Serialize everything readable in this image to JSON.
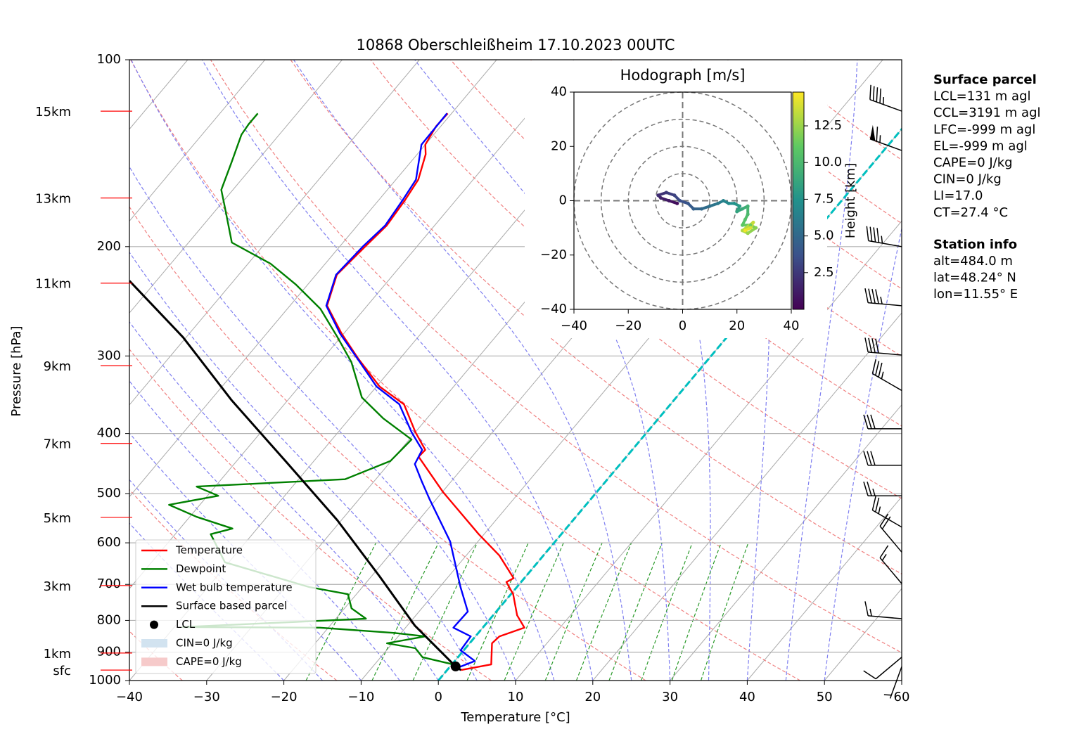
{
  "chart_data": [
    {
      "type": "skewt",
      "title": "10868 Oberschleißheim 17.10.2023 00UTC",
      "x_label": "Temperature [°C]",
      "y_label": "Pressure [hPa]",
      "y_log": true,
      "grid": true,
      "xlim": [
        -40,
        60
      ],
      "xticks": [
        {
          "value": -40,
          "label": "−40"
        },
        {
          "value": -30,
          "label": "−30"
        },
        {
          "value": -20,
          "label": "−20"
        },
        {
          "value": -10,
          "label": "−10"
        },
        0,
        10,
        20,
        30,
        40,
        50,
        60
      ],
      "ylim": [
        1000,
        100
      ],
      "yticks": [
        1000,
        900,
        800,
        700,
        600,
        500,
        400,
        300,
        200,
        100
      ],
      "series": [
        {
          "name": "Temperature",
          "color": "#ff0000",
          "pressure": [
            962,
            942,
            871,
            849,
            822,
            785,
            726,
            694,
            684,
            629,
            581,
            497,
            436,
            425,
            398,
            359,
            336,
            303,
            276,
            249,
            222,
            200,
            185,
            168,
            156,
            142,
            137,
            128,
            122
          ],
          "temperature": [
            1.8,
            5.1,
            2.9,
            3.1,
            5.4,
            3.1,
            0.3,
            -1.9,
            -1.4,
            -5.7,
            -10.7,
            -19.9,
            -26.9,
            -26.8,
            -30.0,
            -34.5,
            -39.6,
            -45.4,
            -50.3,
            -55.2,
            -57.3,
            -56.7,
            -56.2,
            -56.6,
            -57.1,
            -58.9,
            -60.0,
            -60.6,
            -60.5
          ]
        },
        {
          "name": "Dewpoint",
          "color": "#008000",
          "pressure": [
            942,
            917,
            887,
            871,
            849,
            838,
            822,
            820,
            795,
            765,
            726,
            707,
            645,
            581,
            569,
            545,
            521,
            504,
            487,
            474,
            443,
            409,
            378,
            350,
            307,
            280,
            252,
            230,
            213,
            197,
            173,
            162,
            146,
            132,
            127,
            122
          ],
          "temperature": [
            0.2,
            -4.6,
            -6.5,
            -10.7,
            -6.5,
            -11.0,
            -21.1,
            -38.9,
            -16.1,
            -19.1,
            -21.1,
            -26.9,
            -40.5,
            -45.4,
            -43.2,
            -49.1,
            -54.0,
            -48.6,
            -52.4,
            -34.0,
            -30.1,
            -29.7,
            -35.7,
            -40.7,
            -45.9,
            -50.4,
            -55.7,
            -61.6,
            -67.1,
            -74.4,
            -79.1,
            -81.5,
            -83.2,
            -84.9,
            -85.1,
            -85.1
          ]
        },
        {
          "name": "Wet bulb temperature",
          "color": "#0000ff",
          "pressure": [
            954,
            930,
            894,
            849,
            822,
            774,
            707,
            597,
            510,
            478,
            448,
            425,
            398,
            359,
            336,
            303,
            276,
            249,
            222,
            200,
            185,
            168,
            156,
            137,
            122
          ],
          "temperature": [
            1.1,
            2.6,
            -0.4,
            -0.6,
            -3.8,
            -3.7,
            -7.3,
            -13.6,
            -20.9,
            -23.8,
            -26.6,
            -27.2,
            -30.5,
            -35.1,
            -40.0,
            -45.5,
            -50.5,
            -55.3,
            -57.4,
            -57.0,
            -56.4,
            -56.9,
            -57.4,
            -60.5,
            -60.6
          ]
        },
        {
          "name": "Surface based parcel",
          "color": "#000000",
          "pressure": [
            962,
            949,
            882,
            816,
            680,
            552,
            448,
            354,
            280,
            227
          ],
          "temperature": [
            1.8,
            0.7,
            -4.0,
            -9.0,
            -18.9,
            -30.5,
            -43.0,
            -57.2,
            -70.4,
            -83.5
          ]
        }
      ],
      "lcl": {
        "name": "LCL",
        "pressure": 949,
        "temperature": 0.7,
        "color": "#000000"
      },
      "shading": [
        {
          "name": "CIN=0 J/kg",
          "color": "#d2e3f0"
        },
        {
          "name": "CAPE=0 J/kg",
          "color": "#f6caca"
        }
      ],
      "zero_isotherm": {
        "temperature": 0,
        "color": "#00bfbf"
      },
      "height_labels": {
        "color": "#ff0000",
        "labels": [
          "15km",
          "13km",
          "11km",
          "9km",
          "7km",
          "5km",
          "3km",
          "1km",
          "sfc"
        ],
        "pressure": [
          121,
          167,
          229,
          311,
          415,
          546,
          703,
          903,
          962
        ]
      },
      "wind_barbs": {
        "pressure": [
          121,
          140,
          200,
          249,
          299,
          341,
          393,
          450,
          504,
          566,
          621,
          698,
          795,
          917,
          950
        ],
        "speed": [
          45,
          65,
          45,
          45,
          40,
          35,
          30,
          30,
          25,
          25,
          20,
          15,
          15,
          10,
          5
        ],
        "direction": [
          290,
          290,
          280,
          275,
          275,
          300,
          270,
          270,
          270,
          300,
          320,
          320,
          275,
          230,
          200
        ]
      }
    },
    {
      "type": "hodograph",
      "title": "Hodograph [m/s]",
      "xlim": [
        -40,
        40
      ],
      "ylim": [
        -40,
        40
      ],
      "xticks": [
        {
          "value": -40,
          "label": "−40"
        },
        {
          "value": -20,
          "label": "−20"
        },
        0,
        20,
        40
      ],
      "yticks": [
        {
          "value": -40,
          "label": "−40"
        },
        {
          "value": -20,
          "label": "−20"
        },
        0,
        20,
        40
      ],
      "rings": [
        10,
        20,
        30,
        40
      ],
      "u": [
        -2,
        -5,
        -8,
        -9,
        -6,
        -3,
        -1,
        2,
        4,
        7,
        10,
        13,
        15,
        17,
        19,
        21,
        20,
        22,
        24,
        24,
        23,
        22,
        25,
        27,
        24,
        22,
        26,
        25,
        23
      ],
      "v": [
        -1,
        0,
        1,
        2,
        3,
        2,
        0,
        -1,
        -3,
        -3,
        -2,
        -1,
        0,
        -1,
        -1,
        -2,
        -4,
        -3,
        -2,
        -5,
        -7,
        -9,
        -9,
        -10,
        -12,
        -11,
        -8,
        -10,
        -11
      ],
      "height": [
        0.5,
        1,
        1.5,
        2,
        2.5,
        3,
        3.5,
        4,
        4.5,
        5,
        5.5,
        6,
        6.5,
        7,
        7.5,
        8,
        8.5,
        9,
        9.5,
        10,
        10.5,
        11,
        11.5,
        12,
        12.5,
        13,
        13.5,
        14,
        14.5
      ],
      "colorbar": {
        "label": "Height [km]",
        "colormap": "viridis",
        "lim": [
          0,
          14.8
        ],
        "ticks": [
          2.5,
          {
            "value": 5,
            "label": "5.0"
          },
          7.5,
          {
            "value": 10,
            "label": "10.0"
          },
          12.5
        ]
      }
    }
  ],
  "info_panel": [
    {
      "title": "Surface parcel",
      "lines": [
        "LCL=131 m agl",
        "CCL=3191 m agl",
        "LFC=-999 m agl",
        "EL=-999 m agl",
        "CAPE=0 J/kg",
        "CIN=0 J/kg",
        "LI=17.0",
        "CT=27.4 °C"
      ]
    },
    {
      "title": "Station info",
      "lines": [
        "alt=484.0 m",
        "lat=48.24° N",
        "lon=11.55° E"
      ]
    }
  ]
}
